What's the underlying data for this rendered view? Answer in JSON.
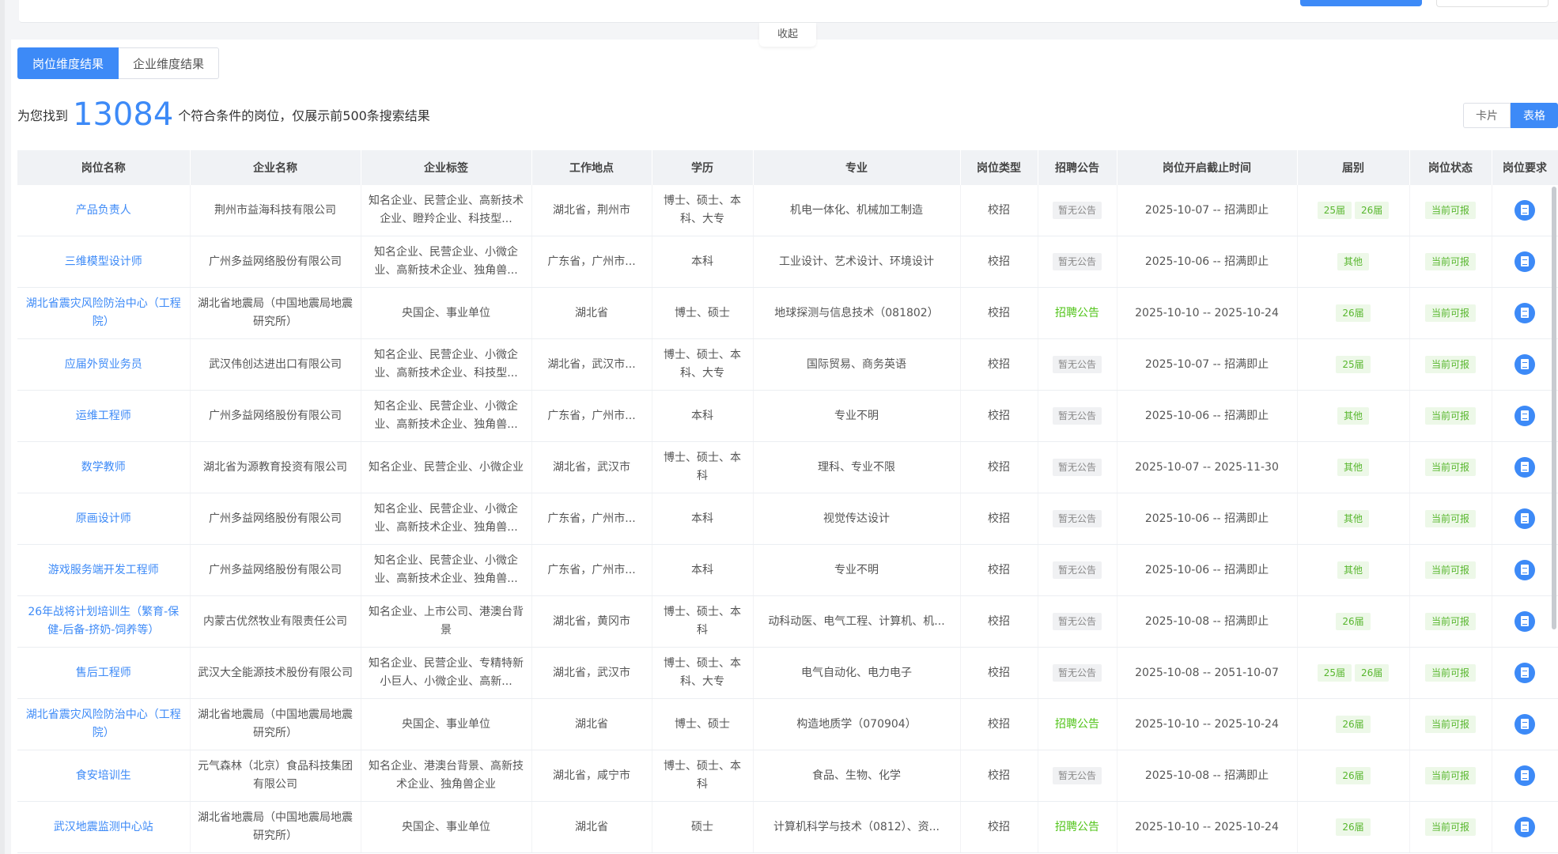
{
  "collapse_label": "收起",
  "tabs": [
    {
      "label": "岗位维度结果",
      "active": true
    },
    {
      "label": "企业维度结果",
      "active": false
    }
  ],
  "summary": {
    "prefix": "为您找到",
    "count": "13084",
    "suffix": "个符合条件的岗位，仅展示前500条搜索结果"
  },
  "view_toggle": {
    "card": "卡片",
    "table": "表格",
    "selected": "表格"
  },
  "columns": [
    "岗位名称",
    "企业名称",
    "企业标签",
    "工作地点",
    "学历",
    "专业",
    "岗位类型",
    "招聘公告",
    "岗位开启截止时间",
    "届别",
    "岗位状态",
    "岗位要求"
  ],
  "colors": {
    "accent": "#3d8af7",
    "green": "#52c41a"
  },
  "action_icon": "document-icon",
  "rows": [
    {
      "name": "产品负责人",
      "company": "荆州市益海科技有限公司",
      "tags": "知名企业、民营企业、高新技术企业、瞪羚企业、科技型...",
      "location": "湖北省，荆州市",
      "edu": "博士、硕士、本科、大专",
      "major": "机电一体化、机械加工制造",
      "type": "校招",
      "notice": "暂无公告",
      "notice_link": false,
      "period": "2025-10-07 -- 招满即止",
      "cohorts": [
        "25届",
        "26届"
      ],
      "status": "当前可报"
    },
    {
      "name": "三维模型设计师",
      "company": "广州多益网络股份有限公司",
      "tags": "知名企业、民营企业、小微企业、高新技术企业、独角兽...",
      "location": "广东省，广州市...",
      "edu": "本科",
      "major": "工业设计、艺术设计、环境设计",
      "type": "校招",
      "notice": "暂无公告",
      "notice_link": false,
      "period": "2025-10-06 -- 招满即止",
      "cohorts": [
        "其他"
      ],
      "status": "当前可报"
    },
    {
      "name": "湖北省震灾风险防治中心（工程院）",
      "company": "湖北省地震局（中国地震局地震研究所）",
      "tags": "央国企、事业单位",
      "location": "湖北省",
      "edu": "博士、硕士",
      "major": "地球探测与信息技术（081802）",
      "type": "校招",
      "notice": "招聘公告",
      "notice_link": true,
      "period": "2025-10-10 -- 2025-10-24",
      "cohorts": [
        "26届"
      ],
      "status": "当前可报"
    },
    {
      "name": "应届外贸业务员",
      "company": "武汉伟创达进出口有限公司",
      "tags": "知名企业、民营企业、小微企业、高新技术企业、科技型...",
      "location": "湖北省，武汉市...",
      "edu": "博士、硕士、本科、大专",
      "major": "国际贸易、商务英语",
      "type": "校招",
      "notice": "暂无公告",
      "notice_link": false,
      "period": "2025-10-07 -- 招满即止",
      "cohorts": [
        "25届"
      ],
      "status": "当前可报"
    },
    {
      "name": "运维工程师",
      "company": "广州多益网络股份有限公司",
      "tags": "知名企业、民营企业、小微企业、高新技术企业、独角兽...",
      "location": "广东省，广州市...",
      "edu": "本科",
      "major": "专业不明",
      "type": "校招",
      "notice": "暂无公告",
      "notice_link": false,
      "period": "2025-10-06 -- 招满即止",
      "cohorts": [
        "其他"
      ],
      "status": "当前可报"
    },
    {
      "name": "数学教师",
      "company": "湖北省为源教育投资有限公司",
      "tags": "知名企业、民营企业、小微企业",
      "location": "湖北省，武汉市",
      "edu": "博士、硕士、本科",
      "major": "理科、专业不限",
      "type": "校招",
      "notice": "暂无公告",
      "notice_link": false,
      "period": "2025-10-07 -- 2025-11-30",
      "cohorts": [
        "其他"
      ],
      "status": "当前可报"
    },
    {
      "name": "原画设计师",
      "company": "广州多益网络股份有限公司",
      "tags": "知名企业、民营企业、小微企业、高新技术企业、独角兽...",
      "location": "广东省，广州市...",
      "edu": "本科",
      "major": "视觉传达设计",
      "type": "校招",
      "notice": "暂无公告",
      "notice_link": false,
      "period": "2025-10-06 -- 招满即止",
      "cohorts": [
        "其他"
      ],
      "status": "当前可报"
    },
    {
      "name": "游戏服务端开发工程师",
      "company": "广州多益网络股份有限公司",
      "tags": "知名企业、民营企业、小微企业、高新技术企业、独角兽...",
      "location": "广东省，广州市...",
      "edu": "本科",
      "major": "专业不明",
      "type": "校招",
      "notice": "暂无公告",
      "notice_link": false,
      "period": "2025-10-06 -- 招满即止",
      "cohorts": [
        "其他"
      ],
      "status": "当前可报"
    },
    {
      "name": "26年战将计划培训生（繁育-保健-后备-挤奶-饲养等）",
      "company": "内蒙古优然牧业有限责任公司",
      "tags": "知名企业、上市公司、港澳台背景",
      "location": "湖北省，黄冈市",
      "edu": "博士、硕士、本科",
      "major": "动科动医、电气工程、计算机、机...",
      "type": "校招",
      "notice": "暂无公告",
      "notice_link": false,
      "period": "2025-10-08 -- 招满即止",
      "cohorts": [
        "26届"
      ],
      "status": "当前可报"
    },
    {
      "name": "售后工程师",
      "company": "武汉大全能源技术股份有限公司",
      "tags": "知名企业、民营企业、专精特新小巨人、小微企业、高新...",
      "location": "湖北省，武汉市",
      "edu": "博士、硕士、本科、大专",
      "major": "电气自动化、电力电子",
      "type": "校招",
      "notice": "暂无公告",
      "notice_link": false,
      "period": "2025-10-08 -- 2051-10-07",
      "cohorts": [
        "25届",
        "26届"
      ],
      "status": "当前可报"
    },
    {
      "name": "湖北省震灾风险防治中心（工程院）",
      "company": "湖北省地震局（中国地震局地震研究所）",
      "tags": "央国企、事业单位",
      "location": "湖北省",
      "edu": "博士、硕士",
      "major": "构造地质学（070904）",
      "type": "校招",
      "notice": "招聘公告",
      "notice_link": true,
      "period": "2025-10-10 -- 2025-10-24",
      "cohorts": [
        "26届"
      ],
      "status": "当前可报"
    },
    {
      "name": "食安培训生",
      "company": "元气森林（北京）食品科技集团有限公司",
      "tags": "知名企业、港澳台背景、高新技术企业、独角兽企业",
      "location": "湖北省，咸宁市",
      "edu": "博士、硕士、本科",
      "major": "食品、生物、化学",
      "type": "校招",
      "notice": "暂无公告",
      "notice_link": false,
      "period": "2025-10-08 -- 招满即止",
      "cohorts": [
        "26届"
      ],
      "status": "当前可报"
    },
    {
      "name": "武汉地震监测中心站",
      "company": "湖北省地震局（中国地震局地震研究所）",
      "tags": "央国企、事业单位",
      "location": "湖北省",
      "edu": "硕士",
      "major": "计算机科学与技术（0812）、资...",
      "type": "校招",
      "notice": "招聘公告",
      "notice_link": true,
      "period": "2025-10-10 -- 2025-10-24",
      "cohorts": [
        "26届"
      ],
      "status": "当前可报"
    }
  ]
}
